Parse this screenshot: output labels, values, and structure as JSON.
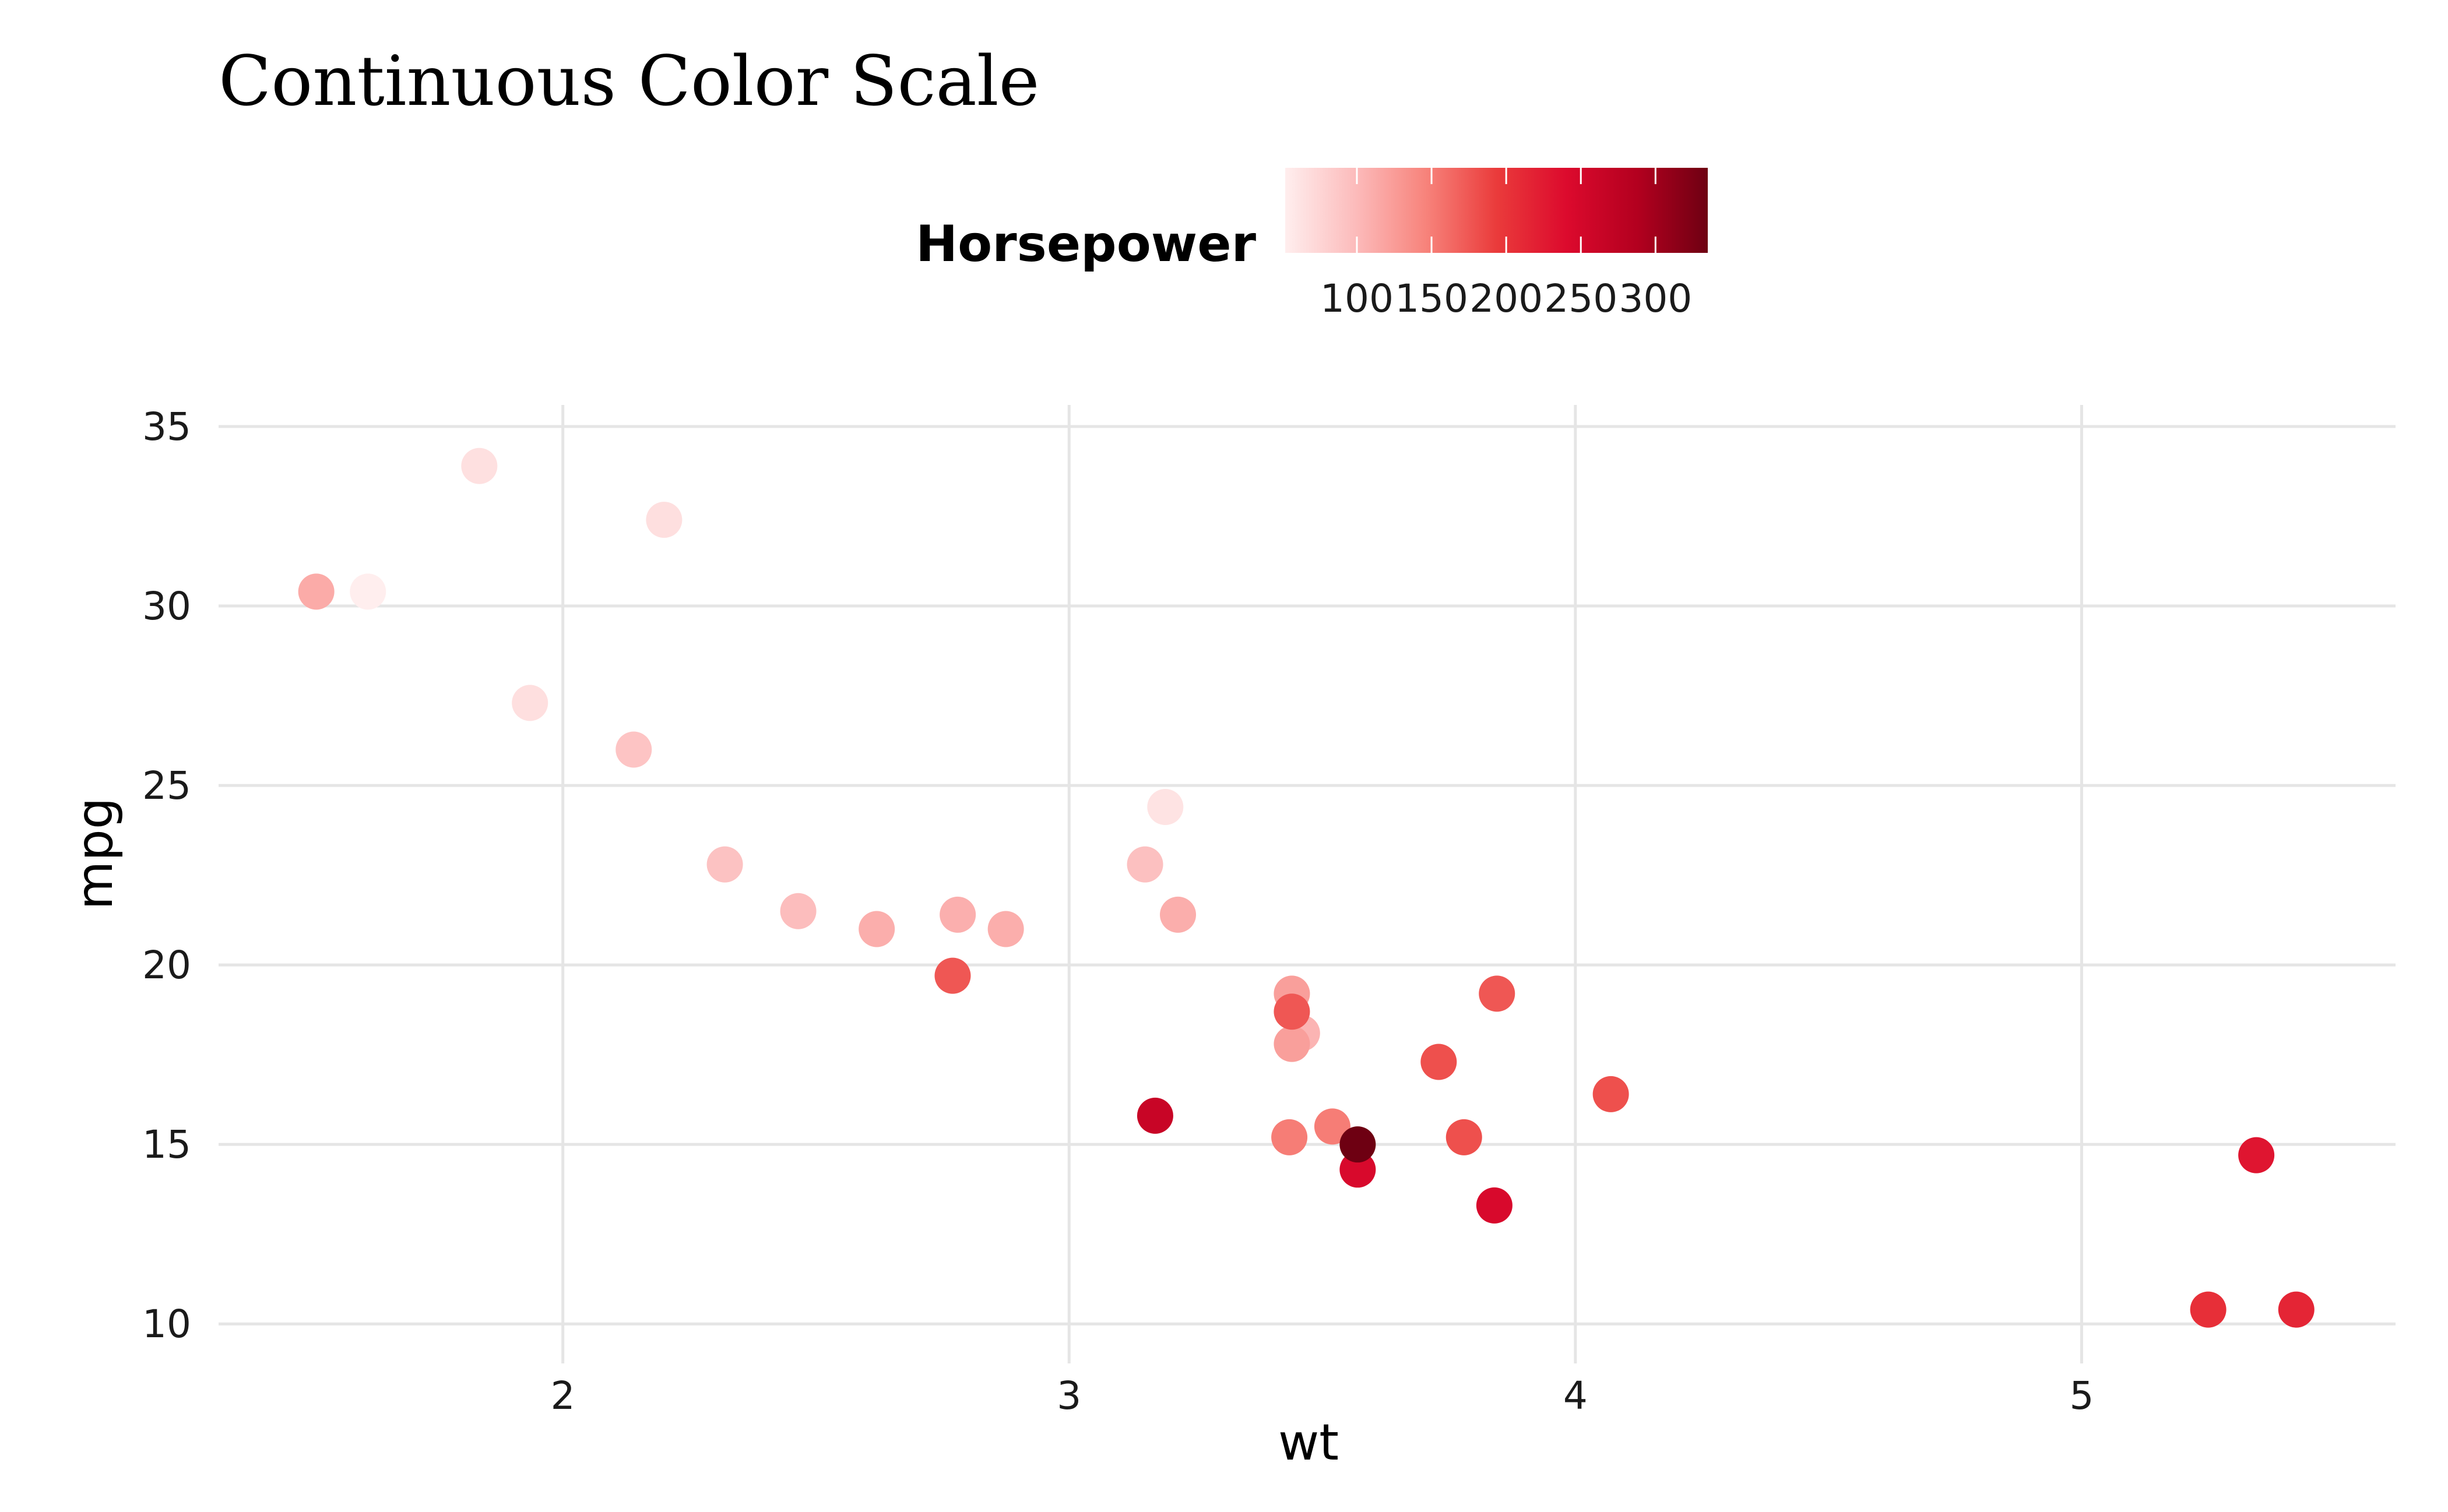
{
  "chart_data": {
    "type": "scatter",
    "title": "Continuous Color Scale",
    "xlabel": "wt",
    "ylabel": "mpg",
    "xlim": [
      1.32,
      5.62
    ],
    "ylim": [
      8.9,
      35.6
    ],
    "x_ticks": [
      2,
      3,
      4,
      5
    ],
    "y_ticks": [
      10,
      15,
      20,
      25,
      30,
      35
    ],
    "grid": true,
    "color_scale": {
      "title": "Horsepower",
      "variable": "hp",
      "min": 52,
      "max": 335,
      "ticks": [
        100,
        150,
        200,
        250,
        300
      ],
      "colors": [
        "#ffeeee",
        "#fcbbbb",
        "#f7837b",
        "#ea3b3b",
        "#dc0a2d",
        "#b3001f",
        "#6e0012"
      ],
      "legend_position": "top"
    },
    "points": [
      {
        "x": 2.62,
        "y": 21.0,
        "hp": 110
      },
      {
        "x": 2.875,
        "y": 21.0,
        "hp": 110
      },
      {
        "x": 2.32,
        "y": 22.8,
        "hp": 93
      },
      {
        "x": 3.215,
        "y": 21.4,
        "hp": 110
      },
      {
        "x": 3.44,
        "y": 18.7,
        "hp": 175
      },
      {
        "x": 3.46,
        "y": 18.1,
        "hp": 105
      },
      {
        "x": 3.57,
        "y": 14.3,
        "hp": 245
      },
      {
        "x": 3.19,
        "y": 24.4,
        "hp": 62
      },
      {
        "x": 3.15,
        "y": 22.8,
        "hp": 95
      },
      {
        "x": 3.44,
        "y": 19.2,
        "hp": 123
      },
      {
        "x": 3.44,
        "y": 17.8,
        "hp": 123
      },
      {
        "x": 4.07,
        "y": 16.4,
        "hp": 180
      },
      {
        "x": 3.73,
        "y": 17.3,
        "hp": 180
      },
      {
        "x": 3.78,
        "y": 15.2,
        "hp": 180
      },
      {
        "x": 5.25,
        "y": 10.4,
        "hp": 205
      },
      {
        "x": 5.424,
        "y": 10.4,
        "hp": 215
      },
      {
        "x": 5.345,
        "y": 14.7,
        "hp": 230
      },
      {
        "x": 2.2,
        "y": 32.4,
        "hp": 66
      },
      {
        "x": 1.615,
        "y": 30.4,
        "hp": 52
      },
      {
        "x": 1.835,
        "y": 33.9,
        "hp": 65
      },
      {
        "x": 2.465,
        "y": 21.5,
        "hp": 97
      },
      {
        "x": 3.52,
        "y": 15.5,
        "hp": 150
      },
      {
        "x": 3.435,
        "y": 15.2,
        "hp": 150
      },
      {
        "x": 3.84,
        "y": 13.3,
        "hp": 245
      },
      {
        "x": 3.845,
        "y": 19.2,
        "hp": 175
      },
      {
        "x": 1.935,
        "y": 27.3,
        "hp": 66
      },
      {
        "x": 2.14,
        "y": 26.0,
        "hp": 91
      },
      {
        "x": 1.513,
        "y": 30.4,
        "hp": 113
      },
      {
        "x": 3.17,
        "y": 15.8,
        "hp": 264
      },
      {
        "x": 2.77,
        "y": 19.7,
        "hp": 175
      },
      {
        "x": 3.57,
        "y": 15.0,
        "hp": 335
      },
      {
        "x": 2.78,
        "y": 21.4,
        "hp": 109
      }
    ]
  }
}
